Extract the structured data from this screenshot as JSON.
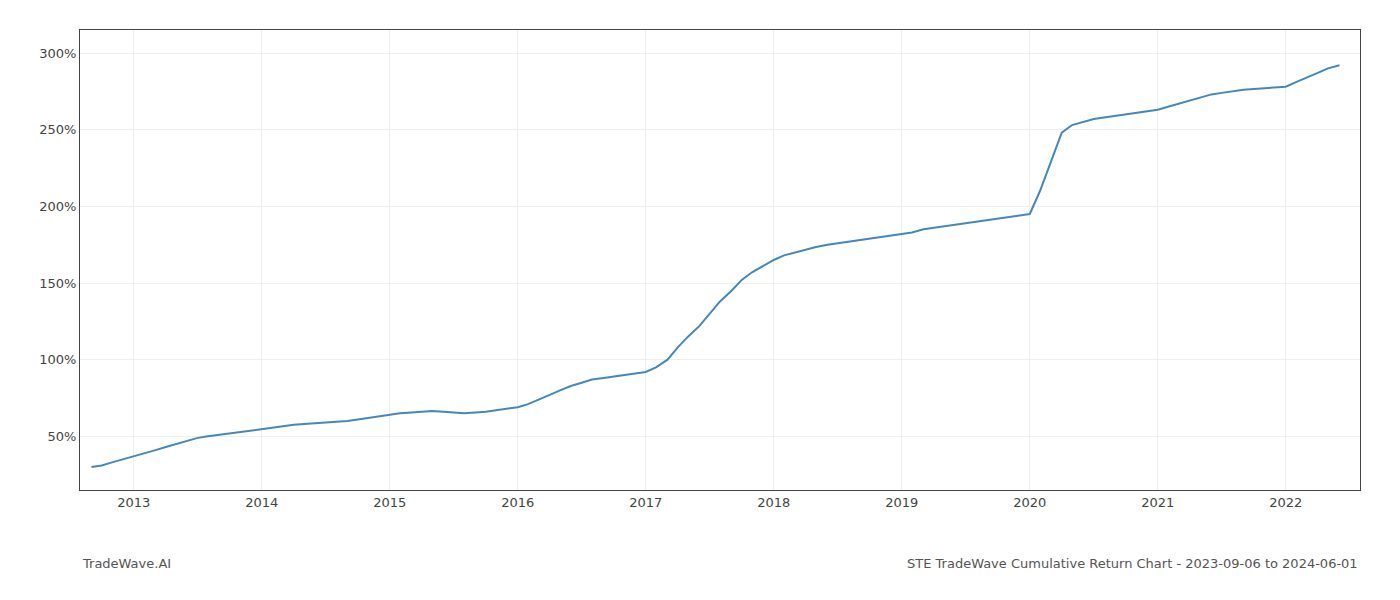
{
  "chart_data": {
    "type": "line",
    "title": "STE TradeWave Cumulative Return Chart - 2023-09-06 to 2024-06-01",
    "annotations": [
      "TradeWave.AI"
    ],
    "color": "#4488bb",
    "grid": true,
    "xlim": [
      2012.58,
      2022.58
    ],
    "xticks": [
      2013,
      2014,
      2015,
      2016,
      2017,
      2018,
      2019,
      2020,
      2021,
      2022
    ],
    "ylim": [
      15,
      315
    ],
    "yticks": [
      {
        "value": 50,
        "label": "50%"
      },
      {
        "value": 100,
        "label": "100%"
      },
      {
        "value": 150,
        "label": "150%"
      },
      {
        "value": 200,
        "label": "200%"
      },
      {
        "value": 250,
        "label": "250%"
      },
      {
        "value": 300,
        "label": "300%"
      }
    ],
    "x": [
      2012.67,
      2012.75,
      2012.83,
      2012.92,
      2013.0,
      2013.08,
      2013.17,
      2013.25,
      2013.33,
      2013.42,
      2013.5,
      2013.58,
      2013.67,
      2013.75,
      2013.83,
      2013.92,
      2014.0,
      2014.08,
      2014.17,
      2014.25,
      2014.33,
      2014.42,
      2014.5,
      2014.58,
      2014.67,
      2014.75,
      2014.83,
      2014.92,
      2015.0,
      2015.08,
      2015.17,
      2015.25,
      2015.33,
      2015.42,
      2015.5,
      2015.58,
      2015.67,
      2015.75,
      2015.83,
      2015.92,
      2016.0,
      2016.08,
      2016.17,
      2016.25,
      2016.33,
      2016.42,
      2016.5,
      2016.58,
      2016.67,
      2016.75,
      2016.83,
      2016.92,
      2017.0,
      2017.08,
      2017.17,
      2017.25,
      2017.33,
      2017.42,
      2017.5,
      2017.58,
      2017.67,
      2017.75,
      2017.83,
      2017.92,
      2018.0,
      2018.08,
      2018.17,
      2018.25,
      2018.33,
      2018.42,
      2018.5,
      2018.58,
      2018.67,
      2018.75,
      2018.83,
      2018.92,
      2019.0,
      2019.08,
      2019.17,
      2019.25,
      2019.33,
      2019.42,
      2019.5,
      2019.58,
      2019.67,
      2019.75,
      2019.83,
      2019.92,
      2020.0,
      2020.08,
      2020.17,
      2020.25,
      2020.33,
      2020.42,
      2020.5,
      2020.58,
      2020.67,
      2020.75,
      2020.83,
      2020.92,
      2021.0,
      2021.08,
      2021.17,
      2021.25,
      2021.33,
      2021.42,
      2021.5,
      2021.58,
      2021.67,
      2021.75,
      2021.83,
      2021.92,
      2022.0,
      2022.08,
      2022.17,
      2022.25,
      2022.33,
      2022.42
    ],
    "values": [
      30,
      31,
      33,
      35,
      37,
      39,
      41,
      43,
      45,
      47,
      49,
      50,
      51,
      52,
      53,
      54,
      55,
      56,
      57,
      57.5,
      58,
      58.5,
      59,
      59.5,
      60,
      61,
      62,
      63,
      64,
      65,
      65.5,
      66,
      66.5,
      66,
      65.5,
      65,
      65.5,
      66,
      67,
      68,
      69,
      71,
      74,
      77,
      80,
      83,
      85,
      87,
      88,
      89,
      90,
      91,
      92,
      95,
      100,
      108,
      115,
      122,
      130,
      138,
      145,
      152,
      157,
      161,
      165,
      168,
      170,
      172,
      173.5,
      175,
      176,
      177,
      178,
      179,
      180,
      181,
      182,
      183,
      185,
      186,
      187,
      188,
      189,
      190,
      191,
      192,
      193,
      194,
      195,
      210,
      230,
      248,
      253,
      255,
      257,
      258,
      259,
      260,
      261,
      262,
      263,
      265,
      267,
      269,
      271,
      273,
      274,
      275,
      276,
      276.5,
      277,
      277.5,
      278,
      281,
      284,
      287,
      290,
      292
    ]
  }
}
